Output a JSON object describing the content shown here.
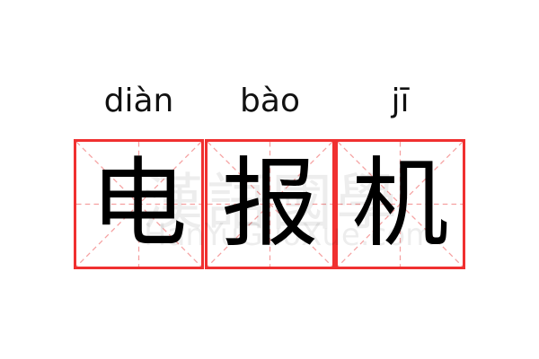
{
  "word": [
    {
      "pinyin": "diàn",
      "hanzi": "电"
    },
    {
      "pinyin": "bào",
      "hanzi": "报"
    },
    {
      "pinyin": "jī",
      "hanzi": "机"
    }
  ],
  "watermark": {
    "chinese": "漢語國學",
    "latin": "HanYuGuoXue.com"
  },
  "colors": {
    "border": "#f03030",
    "guide": "#f5a0a0",
    "text": "#000000"
  }
}
